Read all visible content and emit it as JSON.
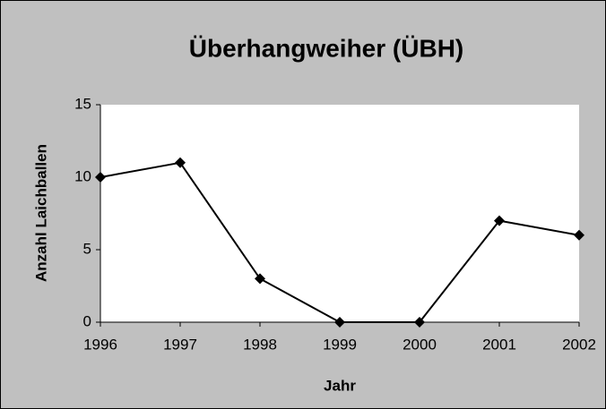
{
  "chart_data": {
    "type": "line",
    "title": "Überhangweiher (ÜBH)",
    "x_label": "Jahr",
    "y_label": "Anzahl Laichballen",
    "x": [
      1996,
      1997,
      1998,
      1999,
      2000,
      2001,
      2002
    ],
    "values": [
      10,
      11,
      3,
      0,
      0,
      7,
      6
    ],
    "color": "#000000",
    "xlim": [
      1996,
      2002
    ],
    "xticks": [
      1996,
      1997,
      1998,
      1999,
      2000,
      2001,
      2002
    ],
    "ylim": [
      0,
      15
    ],
    "yticks": [
      0,
      5,
      10,
      15
    ],
    "grid": false
  }
}
